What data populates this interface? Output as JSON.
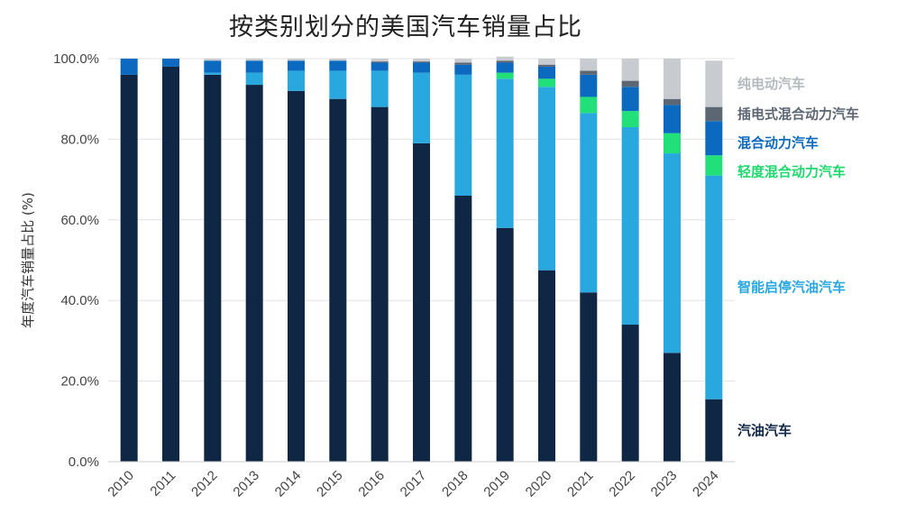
{
  "chart_data": {
    "type": "bar",
    "stacked": true,
    "title": "按类别划分的美国汽车销量占比",
    "ylabel": "年度汽车销量占比 (%)",
    "xlabel": "",
    "ylim": [
      0,
      100
    ],
    "y_ticks": [
      "0.0%",
      "20.0%",
      "40.0%",
      "60.0%",
      "80.0%",
      "100.0%"
    ],
    "grid": true,
    "legend_position": "right, inline labels",
    "categories": [
      "2010",
      "2011",
      "2012",
      "2013",
      "2014",
      "2015",
      "2016",
      "2017",
      "2018",
      "2019",
      "2020",
      "2021",
      "2022",
      "2023",
      "2024"
    ],
    "series": [
      {
        "name": "汽油汽车",
        "color": "#0f2744",
        "values": [
          96,
          98,
          96,
          93.5,
          92,
          90,
          88,
          79,
          66,
          58,
          47.5,
          42,
          34,
          27,
          15.5
        ]
      },
      {
        "name": "智能启停汽油汽车",
        "color": "#29a8e0",
        "values": [
          0,
          0,
          0.5,
          3,
          5,
          7,
          9,
          17.5,
          30,
          37,
          45.5,
          44.5,
          49,
          49.5,
          55.5
        ]
      },
      {
        "name": "轻度混合动力汽车",
        "color": "#22e079",
        "values": [
          0,
          0,
          0,
          0,
          0,
          0,
          0,
          0,
          0,
          1.5,
          2,
          4,
          4,
          5,
          5
        ]
      },
      {
        "name": "混合动力汽车",
        "color": "#0b6abf",
        "values": [
          4,
          2,
          3,
          3,
          2.5,
          2.5,
          2,
          2.5,
          2.5,
          2.5,
          3,
          5.5,
          6,
          7,
          8.5
        ]
      },
      {
        "name": "插电式混合动力汽车",
        "color": "#5c6773",
        "values": [
          0,
          0,
          0,
          0,
          0,
          0,
          0.3,
          0.3,
          0.5,
          0.5,
          0.5,
          1,
          1.5,
          1.5,
          3.5
        ]
      },
      {
        "name": "纯电动汽车",
        "color": "#c8ccd0",
        "values": [
          0,
          0,
          0.5,
          0.5,
          0.5,
          0.5,
          0.7,
          0.7,
          1,
          1,
          1.5,
          3,
          5.5,
          10,
          11.5
        ]
      }
    ]
  }
}
